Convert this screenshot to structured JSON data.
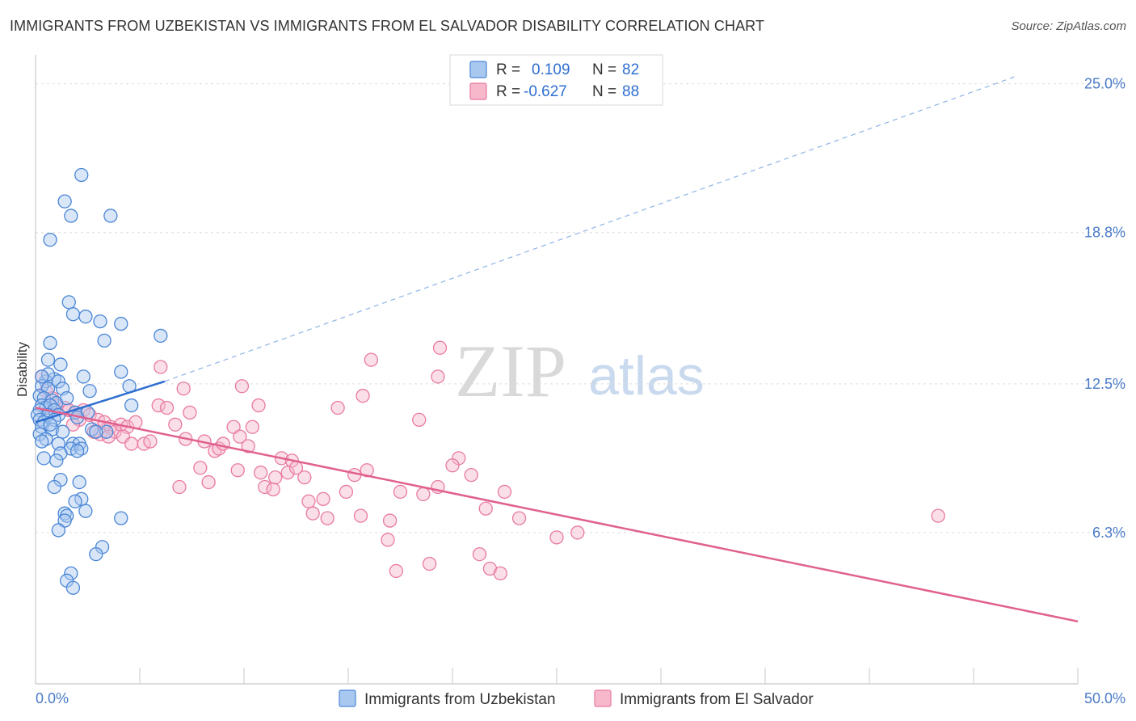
{
  "title": "IMMIGRANTS FROM UZBEKISTAN VS IMMIGRANTS FROM EL SALVADOR DISABILITY CORRELATION CHART",
  "source": "Source: ZipAtlas.com",
  "watermark": {
    "zip": "ZIP",
    "atlas": "atlas"
  },
  "legend_top": {
    "rows": [
      {
        "r_label": "R =",
        "r_value": "0.109",
        "n_label": "N =",
        "n_value": "82"
      },
      {
        "r_label": "R =",
        "r_value": "-0.627",
        "n_label": "N =",
        "n_value": "88"
      }
    ]
  },
  "colors": {
    "uzbekistan_fill": "#a9c8f0",
    "uzbekistan_stroke": "#4a86d6",
    "uzbekistan_line": "#2f6fd0",
    "elsalvador_fill": "#f7b8cc",
    "elsalvador_stroke": "#e87aa0",
    "elsalvador_line": "#e0608f",
    "tick_text": "#4a7bc8",
    "grid": "#dddddd"
  },
  "chart_data": {
    "type": "scatter",
    "xlabel": "",
    "ylabel": "Disability",
    "xlim": [
      0,
      50
    ],
    "ylim": [
      0,
      26.2
    ],
    "x_tick_labels": [
      "0.0%",
      "50.0%"
    ],
    "y_ticks": [
      6.3,
      12.5,
      18.8,
      25.0
    ],
    "y_tick_labels": [
      "6.3%",
      "12.5%",
      "18.8%",
      "25.0%"
    ],
    "grid": "horizontal dashed",
    "legend": [
      "Immigrants from Uzbekistan",
      "Immigrants from El Salvador"
    ],
    "series": [
      {
        "name": "Immigrants from Uzbekistan",
        "r": 0.109,
        "n": 82,
        "trend": {
          "x": [
            0,
            6.2
          ],
          "y": [
            10.9,
            12.6
          ],
          "dashed_extension_to": [
            47,
            25.3
          ]
        },
        "points": [
          [
            2.2,
            21.2
          ],
          [
            1.4,
            20.1
          ],
          [
            1.7,
            19.5
          ],
          [
            3.6,
            19.5
          ],
          [
            0.7,
            18.5
          ],
          [
            1.6,
            15.9
          ],
          [
            1.8,
            15.4
          ],
          [
            2.4,
            15.3
          ],
          [
            3.1,
            15.1
          ],
          [
            4.1,
            15.0
          ],
          [
            6.0,
            14.5
          ],
          [
            0.7,
            14.2
          ],
          [
            3.3,
            14.3
          ],
          [
            0.6,
            13.5
          ],
          [
            1.2,
            13.3
          ],
          [
            4.1,
            13.0
          ],
          [
            2.3,
            12.8
          ],
          [
            0.9,
            12.7
          ],
          [
            0.5,
            12.6
          ],
          [
            1.1,
            12.6
          ],
          [
            0.3,
            12.4
          ],
          [
            0.6,
            12.3
          ],
          [
            4.5,
            12.4
          ],
          [
            1.3,
            12.3
          ],
          [
            2.6,
            12.2
          ],
          [
            0.2,
            12.0
          ],
          [
            0.4,
            11.9
          ],
          [
            0.8,
            11.8
          ],
          [
            1.0,
            11.7
          ],
          [
            0.3,
            11.6
          ],
          [
            0.5,
            11.5
          ],
          [
            0.7,
            11.6
          ],
          [
            0.2,
            11.4
          ],
          [
            0.9,
            11.4
          ],
          [
            4.6,
            11.6
          ],
          [
            1.9,
            11.3
          ],
          [
            0.1,
            11.2
          ],
          [
            0.6,
            11.2
          ],
          [
            1.1,
            11.2
          ],
          [
            2.5,
            11.3
          ],
          [
            0.2,
            11.0
          ],
          [
            0.4,
            10.9
          ],
          [
            0.9,
            11.0
          ],
          [
            0.3,
            10.7
          ],
          [
            0.8,
            10.6
          ],
          [
            1.3,
            10.5
          ],
          [
            0.2,
            10.4
          ],
          [
            2.7,
            10.6
          ],
          [
            3.4,
            10.5
          ],
          [
            2.9,
            10.5
          ],
          [
            0.5,
            10.2
          ],
          [
            1.1,
            10.0
          ],
          [
            0.3,
            10.1
          ],
          [
            1.8,
            10.0
          ],
          [
            2.1,
            10.0
          ],
          [
            1.7,
            9.8
          ],
          [
            2.2,
            9.8
          ],
          [
            1.2,
            9.6
          ],
          [
            2.0,
            9.7
          ],
          [
            0.4,
            9.4
          ],
          [
            1.0,
            9.3
          ],
          [
            1.2,
            8.5
          ],
          [
            2.1,
            8.4
          ],
          [
            0.9,
            8.2
          ],
          [
            2.2,
            7.7
          ],
          [
            1.9,
            7.6
          ],
          [
            2.4,
            7.2
          ],
          [
            1.4,
            7.1
          ],
          [
            1.5,
            7.0
          ],
          [
            4.1,
            6.9
          ],
          [
            1.4,
            6.8
          ],
          [
            1.1,
            6.4
          ],
          [
            3.2,
            5.7
          ],
          [
            2.9,
            5.4
          ],
          [
            1.7,
            4.6
          ],
          [
            1.5,
            4.3
          ],
          [
            1.8,
            4.0
          ],
          [
            0.6,
            12.9
          ],
          [
            0.3,
            12.8
          ],
          [
            1.5,
            11.9
          ],
          [
            2.0,
            11.1
          ],
          [
            0.7,
            10.8
          ]
        ]
      },
      {
        "name": "Immigrants from El Salvador",
        "r": -0.627,
        "n": 88,
        "trend": {
          "x": [
            0,
            50
          ],
          "y": [
            11.5,
            2.6
          ]
        },
        "points": [
          [
            0.3,
            12.8
          ],
          [
            0.5,
            12.2
          ],
          [
            0.8,
            11.9
          ],
          [
            1.0,
            11.6
          ],
          [
            1.4,
            11.5
          ],
          [
            1.6,
            11.4
          ],
          [
            1.9,
            11.3
          ],
          [
            2.3,
            11.4
          ],
          [
            2.6,
            11.2
          ],
          [
            2.1,
            11.0
          ],
          [
            1.8,
            10.8
          ],
          [
            3.0,
            11.0
          ],
          [
            3.3,
            10.9
          ],
          [
            3.6,
            10.7
          ],
          [
            3.8,
            10.5
          ],
          [
            3.1,
            10.4
          ],
          [
            2.8,
            10.5
          ],
          [
            3.5,
            10.3
          ],
          [
            4.1,
            10.8
          ],
          [
            4.4,
            10.7
          ],
          [
            4.8,
            10.9
          ],
          [
            4.2,
            10.3
          ],
          [
            4.6,
            10.0
          ],
          [
            5.2,
            10.0
          ],
          [
            5.5,
            10.1
          ],
          [
            5.9,
            11.6
          ],
          [
            6.3,
            11.5
          ],
          [
            6.0,
            13.2
          ],
          [
            7.1,
            12.3
          ],
          [
            6.7,
            10.8
          ],
          [
            7.2,
            10.2
          ],
          [
            6.9,
            8.2
          ],
          [
            7.4,
            11.3
          ],
          [
            8.1,
            10.1
          ],
          [
            7.9,
            9.0
          ],
          [
            8.6,
            9.7
          ],
          [
            8.8,
            9.8
          ],
          [
            9.0,
            10.0
          ],
          [
            8.3,
            8.4
          ],
          [
            9.5,
            10.7
          ],
          [
            9.8,
            10.3
          ],
          [
            9.7,
            8.9
          ],
          [
            10.2,
            9.9
          ],
          [
            10.4,
            10.7
          ],
          [
            10.7,
            11.6
          ],
          [
            9.9,
            12.4
          ],
          [
            10.8,
            8.8
          ],
          [
            11.0,
            8.2
          ],
          [
            11.4,
            8.1
          ],
          [
            11.5,
            8.6
          ],
          [
            11.8,
            9.4
          ],
          [
            12.1,
            8.8
          ],
          [
            12.3,
            9.3
          ],
          [
            12.5,
            9.0
          ],
          [
            12.9,
            8.6
          ],
          [
            13.1,
            7.6
          ],
          [
            13.3,
            7.1
          ],
          [
            13.8,
            7.7
          ],
          [
            14.0,
            6.9
          ],
          [
            14.5,
            11.5
          ],
          [
            14.9,
            8.0
          ],
          [
            15.3,
            8.7
          ],
          [
            15.6,
            7.0
          ],
          [
            15.9,
            8.9
          ],
          [
            15.7,
            12.0
          ],
          [
            16.1,
            13.5
          ],
          [
            17.0,
            6.8
          ],
          [
            16.9,
            6.0
          ],
          [
            17.3,
            4.7
          ],
          [
            17.5,
            8.0
          ],
          [
            18.4,
            11.0
          ],
          [
            18.6,
            7.9
          ],
          [
            18.9,
            5.0
          ],
          [
            19.3,
            12.8
          ],
          [
            19.4,
            14.0
          ],
          [
            20.3,
            9.4
          ],
          [
            20.0,
            9.1
          ],
          [
            19.3,
            8.2
          ],
          [
            20.9,
            8.7
          ],
          [
            21.3,
            5.4
          ],
          [
            21.6,
            7.3
          ],
          [
            21.8,
            4.8
          ],
          [
            22.3,
            4.6
          ],
          [
            22.5,
            8.0
          ],
          [
            23.2,
            6.9
          ],
          [
            25.0,
            6.1
          ],
          [
            26.0,
            6.3
          ],
          [
            43.3,
            7.0
          ]
        ]
      }
    ]
  },
  "bottom_legend": {
    "items": [
      "Immigrants from Uzbekistan",
      "Immigrants from El Salvador"
    ]
  }
}
